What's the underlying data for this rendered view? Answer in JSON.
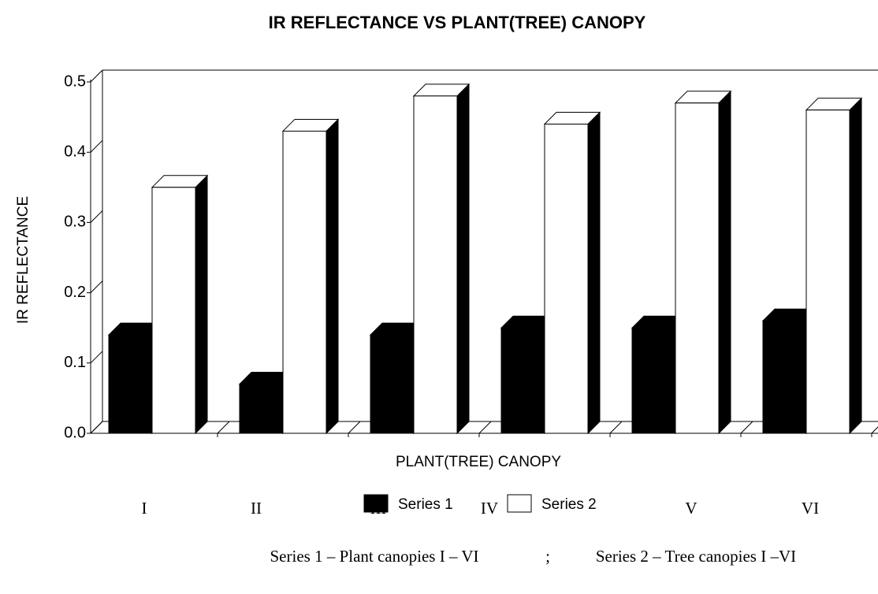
{
  "chart_data": {
    "type": "bar3d",
    "title": "IR REFLECTANCE VS PLANT(TREE) CANOPY",
    "x_label": "PLANT(TREE) CANOPY",
    "y_label": "IR REFLECTANCE",
    "categories": [
      "I",
      "II",
      "III",
      "IV",
      "V",
      "VI"
    ],
    "series": [
      {
        "name": "Series 1",
        "color": "#000000",
        "values": [
          0.14,
          0.07,
          0.14,
          0.15,
          0.15,
          0.16
        ]
      },
      {
        "name": "Series 2",
        "color": "#ffffff",
        "values": [
          0.35,
          0.43,
          0.48,
          0.44,
          0.47,
          0.46
        ]
      }
    ],
    "ylim": [
      0,
      0.5
    ],
    "yticks": [
      {
        "value": 0,
        "label": "0.0"
      },
      0.1,
      0.2,
      0.3,
      0.4,
      0.5
    ],
    "notes": [
      "Series 1 – Plant canopies I – VI",
      ";",
      "Series 2 – Tree canopies I –VI"
    ]
  }
}
